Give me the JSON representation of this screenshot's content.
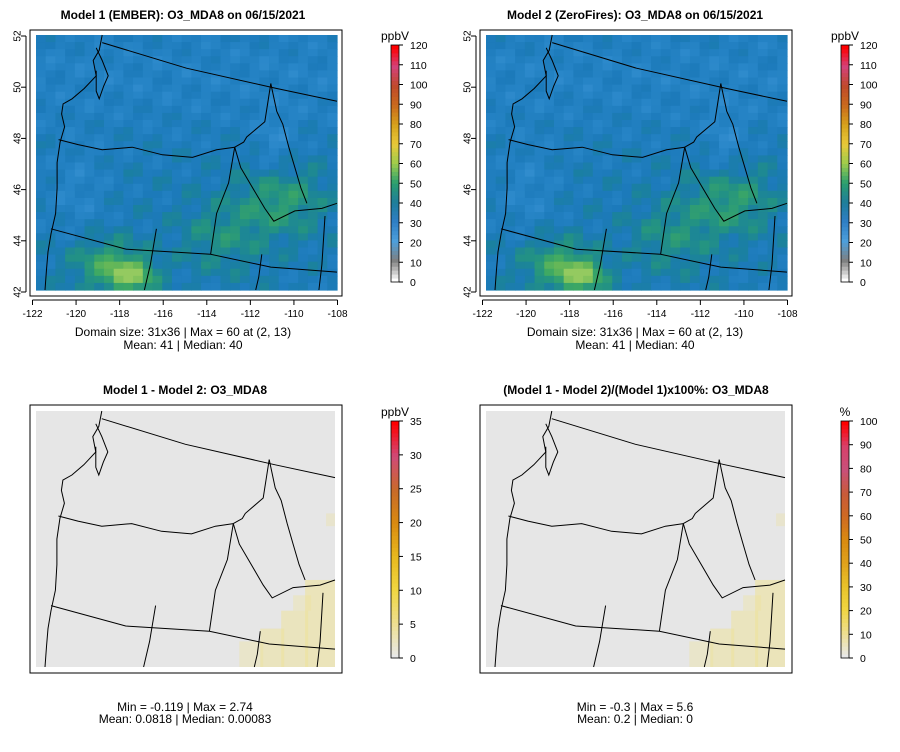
{
  "chart_data": [
    {
      "type": "heatmap",
      "title": "Model 1 (EMBER): O3_MDA8 on 06/15/2021",
      "x_ticks": [
        "-122",
        "-120",
        "-118",
        "-116",
        "-114",
        "-112",
        "-110",
        "-108"
      ],
      "y_ticks": [
        "42",
        "44",
        "46",
        "48",
        "50",
        "52"
      ],
      "xlim": [
        -122,
        -108
      ],
      "ylim": [
        42,
        52
      ],
      "domain_size": [
        31,
        36
      ],
      "stats_line1": "Domain size: 31x36 | Max = 60 at (2, 13)",
      "stats_line2": "Mean: 41 |  Median: 40",
      "stats": {
        "max": 60,
        "max_at": [
          2,
          13
        ],
        "mean": 41,
        "median": 40
      },
      "legend": {
        "unit": "ppbV",
        "ticks": [
          "0",
          "10",
          "20",
          "30",
          "40",
          "50",
          "60",
          "70",
          "80",
          "90",
          "100",
          "110",
          "120"
        ],
        "colors": [
          "#ffffff",
          "#7f7f7f",
          "#4ea0dc",
          "#2f7fc6",
          "#1f7d9b",
          "#2a9e6f",
          "#9ccc4c",
          "#e8c93a",
          "#d7a21c",
          "#c96a1c",
          "#c04a2a",
          "#d3427a",
          "#ff0000"
        ]
      },
      "field": {
        "base": 40,
        "pattern": "blue field with green band in eastern Oregon/Idaho, green/yellow-green hotspot in south-central Oregon"
      }
    },
    {
      "type": "heatmap",
      "title": "Model 2 (ZeroFires): O3_MDA8 on 06/15/2021",
      "x_ticks": [
        "-122",
        "-120",
        "-118",
        "-116",
        "-114",
        "-112",
        "-110",
        "-108"
      ],
      "y_ticks": [
        "42",
        "44",
        "46",
        "48",
        "50",
        "52"
      ],
      "xlim": [
        -122,
        -108
      ],
      "ylim": [
        42,
        52
      ],
      "domain_size": [
        31,
        36
      ],
      "stats_line1": "Domain size: 31x36 | Max = 60 at (2, 13)",
      "stats_line2": "Mean: 41 |  Median: 40",
      "stats": {
        "max": 60,
        "max_at": [
          2,
          13
        ],
        "mean": 41,
        "median": 40
      },
      "legend": {
        "unit": "ppbV",
        "ticks": [
          "0",
          "10",
          "20",
          "30",
          "40",
          "50",
          "60",
          "70",
          "80",
          "90",
          "100",
          "110",
          "120"
        ],
        "colors": [
          "#ffffff",
          "#7f7f7f",
          "#4ea0dc",
          "#2f7fc6",
          "#1f7d9b",
          "#2a9e6f",
          "#9ccc4c",
          "#e8c93a",
          "#d7a21c",
          "#c96a1c",
          "#c04a2a",
          "#d3427a",
          "#ff0000"
        ]
      },
      "field": {
        "base": 40,
        "pattern": "same as Model 1"
      }
    },
    {
      "type": "heatmap",
      "title": "Model 1 - Model 2: O3_MDA8",
      "stats_line1": "Min = -0.119 | Max = 2.74",
      "stats_line2": "Mean: 0.0818 |  Median: 0.00083",
      "stats": {
        "min": -0.119,
        "max": 2.74,
        "mean": 0.0818,
        "median": 0.00083
      },
      "legend": {
        "unit": "ppbV",
        "ticks": [
          "0",
          "5",
          "10",
          "15",
          "20",
          "25",
          "30",
          "35"
        ],
        "colors": [
          "#e8e8e8",
          "#eedf8f",
          "#f0d641",
          "#e8b81e",
          "#d98a10",
          "#c86a2a",
          "#d04a78",
          "#ff0000"
        ]
      },
      "field": {
        "base": 0,
        "pattern": "light yellow in the far south-east corner"
      }
    },
    {
      "type": "heatmap",
      "title": "(Model 1 - Model 2)/(Model 1)x100%: O3_MDA8",
      "stats_line1": "Min = -0.3 | Max = 5.6",
      "stats_line2": "Mean: 0.2 |  Median: 0",
      "stats": {
        "min": -0.3,
        "max": 5.6,
        "mean": 0.2,
        "median": 0
      },
      "legend": {
        "unit": "%",
        "ticks": [
          "0",
          "10",
          "20",
          "30",
          "40",
          "50",
          "60",
          "70",
          "80",
          "90",
          "100"
        ],
        "colors": [
          "#e8e8e8",
          "#eedf8f",
          "#f0d641",
          "#e8c22a",
          "#e0a21c",
          "#d98a10",
          "#cf6a22",
          "#c85a3a",
          "#c8507a",
          "#d8406a",
          "#ff0000"
        ]
      },
      "field": {
        "base": 0,
        "pattern": "light yellow in the far south-east corner"
      }
    }
  ]
}
